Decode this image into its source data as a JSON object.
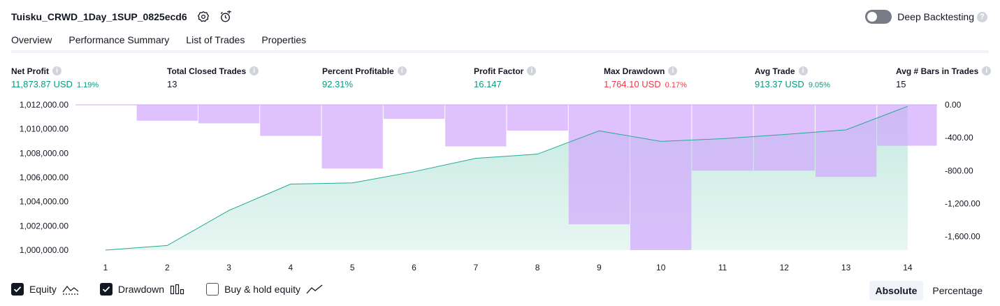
{
  "header": {
    "strategy_name": "Tuisku_CRWD_1Day_1SUP_0825ecd6",
    "settings_icon": "gear-icon",
    "alert_icon": "alarm-clock-plus-icon"
  },
  "deep_backtesting": {
    "label": "Deep Backtesting",
    "enabled": false,
    "help_icon": "question-icon",
    "help_glyph": "?"
  },
  "tabs": [
    {
      "label": "Overview",
      "active": true
    },
    {
      "label": "Performance Summary",
      "active": false
    },
    {
      "label": "List of Trades",
      "active": false
    },
    {
      "label": "Properties",
      "active": false
    }
  ],
  "metrics": [
    {
      "label": "Net Profit",
      "value": "11,873.87 USD",
      "sub": "1.19%",
      "tone": "pos"
    },
    {
      "label": "Total Closed Trades",
      "value": "13",
      "sub": "",
      "tone": "neu"
    },
    {
      "label": "Percent Profitable",
      "value": "92.31%",
      "sub": "",
      "tone": "pos"
    },
    {
      "label": "Profit Factor",
      "value": "16.147",
      "sub": "",
      "tone": "pos"
    },
    {
      "label": "Max Drawdown",
      "value": "1,764.10 USD",
      "sub": "0.17%",
      "tone": "neg"
    },
    {
      "label": "Avg Trade",
      "value": "913.37 USD",
      "sub": "9.05%",
      "tone": "pos"
    },
    {
      "label": "Avg # Bars in Trades",
      "value": "15",
      "sub": "",
      "tone": "neu"
    }
  ],
  "info_glyph": "i",
  "colors": {
    "equity_line": "#22ab94",
    "equity_fill_top": "#c4eadf",
    "equity_fill_bottom": "#e8f6f2",
    "drawdown_fill": "#d1a6fd",
    "overlap_fill": "#a3b1e2",
    "positive": "#089981",
    "negative": "#f23645"
  },
  "chart_data": {
    "type": "area",
    "x": [
      1,
      2,
      3,
      4,
      5,
      6,
      7,
      8,
      9,
      10,
      11,
      12,
      13,
      14
    ],
    "left_axis": {
      "ticks": [
        1000000,
        1002000,
        1004000,
        1006000,
        1008000,
        1010000,
        1012000
      ],
      "tick_labels": [
        "1,000,000.00",
        "1,002,000.00",
        "1,004,000.00",
        "1,006,000.00",
        "1,008,000.00",
        "1,010,000.00",
        "1,012,000.00"
      ],
      "ylim": [
        1000000,
        1012000
      ]
    },
    "right_axis": {
      "ticks": [
        0,
        -400,
        -800,
        -1200,
        -1600
      ],
      "tick_labels": [
        "0.00",
        "-400.00",
        "-800.00",
        "-1,200.00",
        "-1,600.00"
      ],
      "ylim": [
        -1764.1,
        0
      ]
    },
    "series": [
      {
        "name": "Equity",
        "axis": "left",
        "values": [
          1000000,
          1000380,
          1003280,
          1005450,
          1005550,
          1006480,
          1007580,
          1007930,
          1009850,
          1008980,
          1009200,
          1009550,
          1009930,
          1011873.87
        ]
      },
      {
        "name": "Drawdown",
        "axis": "right",
        "kind": "bar",
        "values": [
          0,
          -193,
          -225,
          -377,
          -773,
          -171,
          -505,
          -313,
          -1450,
          -1764.1,
          -800,
          -800,
          -875,
          -497
        ]
      }
    ]
  },
  "legend": [
    {
      "label": "Equity",
      "checked": true,
      "icon": "equity-line-icon"
    },
    {
      "label": "Drawdown",
      "checked": true,
      "icon": "drawdown-bars-icon"
    },
    {
      "label": "Buy & hold equity",
      "checked": false,
      "icon": "buy-hold-line-icon"
    }
  ],
  "modes": [
    {
      "label": "Absolute",
      "active": true
    },
    {
      "label": "Percentage",
      "active": false
    }
  ]
}
